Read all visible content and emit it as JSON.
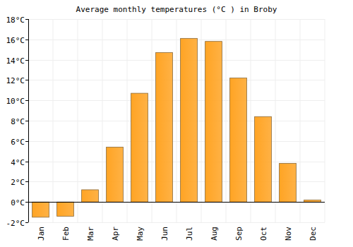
{
  "chart_data": {
    "type": "bar",
    "title": "Average monthly temperatures (°C ) in Broby",
    "categories": [
      "Jan",
      "Feb",
      "Mar",
      "Apr",
      "May",
      "Jun",
      "Jul",
      "Aug",
      "Sep",
      "Oct",
      "Nov",
      "Dec"
    ],
    "values": [
      -1.5,
      -1.4,
      1.2,
      5.4,
      10.7,
      14.7,
      16.1,
      15.8,
      12.2,
      8.4,
      3.8,
      0.2
    ],
    "color": "#ffa424",
    "ylim": [
      -2,
      18
    ],
    "yticks": [
      {
        "value": -2,
        "label": "-2°C"
      },
      {
        "value": 0,
        "label": "0°C"
      },
      {
        "value": 2,
        "label": "2°C"
      },
      {
        "value": 4,
        "label": "4°C"
      },
      {
        "value": 6,
        "label": "6°C"
      },
      {
        "value": 8,
        "label": "8°C"
      },
      {
        "value": 10,
        "label": "10°C"
      },
      {
        "value": 12,
        "label": "12°C"
      },
      {
        "value": 14,
        "label": "14°C"
      },
      {
        "value": 16,
        "label": "16°C"
      },
      {
        "value": 18,
        "label": "18°C"
      }
    ],
    "grid": true
  }
}
